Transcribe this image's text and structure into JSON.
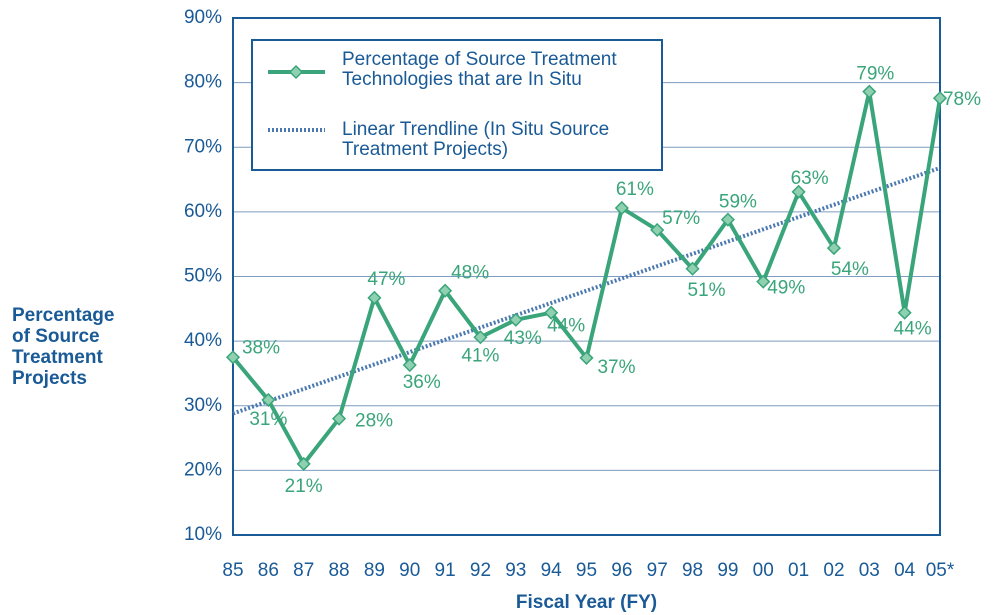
{
  "chart_data": {
    "type": "line",
    "xlabel": "Fiscal Year (FY)",
    "ylabel": "Percentage of Source Treatment Projects",
    "categories": [
      "85",
      "86",
      "87",
      "88",
      "89",
      "90",
      "91",
      "92",
      "93",
      "94",
      "95",
      "96",
      "97",
      "98",
      "99",
      "00",
      "01",
      "02",
      "03",
      "04",
      "05*"
    ],
    "series": [
      {
        "name": "Percentage of Source Treatment Technologies that are In Situ",
        "color": "#3aa57a",
        "marker_color": "#8fd0b0",
        "values": [
          37.5,
          30.9,
          21.0,
          28.0,
          46.7,
          36.3,
          47.8,
          40.6,
          43.3,
          44.4,
          37.4,
          60.6,
          57.2,
          51.2,
          58.8,
          49.2,
          63.1,
          54.4,
          78.6,
          44.4,
          77.6
        ],
        "value_labels": [
          "38%",
          "31%",
          "21%",
          "28%",
          "47%",
          "36%",
          "48%",
          "41%",
          "43%",
          "44%",
          "37%",
          "61%",
          "57%",
          "51%",
          "59%",
          "49%",
          "63%",
          "54%",
          "79%",
          "44%",
          "78%"
        ]
      }
    ],
    "trendline": {
      "name": "Linear Trendline (In Situ Source Treatment Projects)",
      "color": "#4a78b0",
      "start": 28.8,
      "end": 66.8
    },
    "ylim": [
      10,
      90
    ],
    "yticks": [
      {
        "value": 10,
        "label": "10%"
      },
      {
        "value": 20,
        "label": "20%"
      },
      {
        "value": 30,
        "label": "30%"
      },
      {
        "value": 40,
        "label": "40%"
      },
      {
        "value": 50,
        "label": "50%"
      },
      {
        "value": 60,
        "label": "60%"
      },
      {
        "value": 70,
        "label": "70%"
      },
      {
        "value": 80,
        "label": "80%"
      },
      {
        "value": 90,
        "label": "90%"
      }
    ],
    "grid": true,
    "legend": "upper left"
  }
}
